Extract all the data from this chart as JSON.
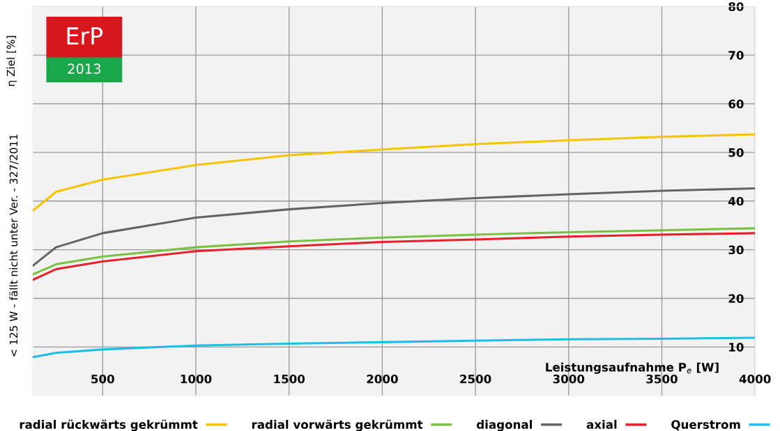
{
  "chart_data": {
    "type": "line",
    "ylabel": "η Ziel [%]",
    "xlabel": "Leistungsaufnahme P$_{e}$ [W]",
    "annotations": [
      "< 125 W - fällt nicht unter Ver. - 327/2011",
      "ErP",
      "2013"
    ],
    "xlim": [
      125,
      4000
    ],
    "xticks": [
      500,
      1000,
      1500,
      2000,
      2500,
      3000,
      3500,
      4000
    ],
    "ylim": [
      0,
      80
    ],
    "yticks": [
      10,
      20,
      30,
      40,
      50,
      60,
      70,
      80
    ],
    "x": [
      125,
      250,
      500,
      1000,
      1500,
      2000,
      2500,
      3000,
      3500,
      4000
    ],
    "series": [
      {
        "name": "radial rückwärts gekrümmt",
        "color": "#f5c400",
        "values": [
          38.0,
          41.9,
          44.4,
          47.4,
          49.4,
          50.6,
          51.7,
          52.5,
          53.2,
          53.7
        ]
      },
      {
        "name": "radial vorwärts gekrümmt",
        "color": "#7ac143",
        "values": [
          24.9,
          27.0,
          28.6,
          30.5,
          31.7,
          32.5,
          33.1,
          33.6,
          34.0,
          34.4
        ]
      },
      {
        "name": "diagonal",
        "color": "#636363",
        "values": [
          26.7,
          30.5,
          33.4,
          36.6,
          38.3,
          39.6,
          40.6,
          41.4,
          42.1,
          42.6
        ]
      },
      {
        "name": "axial",
        "color": "#e8202a",
        "values": [
          23.8,
          26.0,
          27.6,
          29.7,
          30.7,
          31.6,
          32.1,
          32.7,
          33.1,
          33.4
        ]
      },
      {
        "name": "Querstrom",
        "color": "#1ebde8",
        "values": [
          7.9,
          8.8,
          9.5,
          10.3,
          10.7,
          11.0,
          11.3,
          11.6,
          11.7,
          11.9
        ]
      }
    ],
    "grid": true,
    "legend": "bottom",
    "marker": "none",
    "line_style": "solid"
  }
}
